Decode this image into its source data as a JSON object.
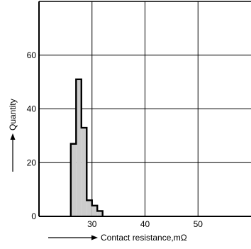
{
  "chart_data": {
    "type": "bar",
    "subtype": "histogram",
    "title": "",
    "xlabel": "Contact resistance,mΩ",
    "ylabel": "Quantity",
    "xlim": [
      20,
      60
    ],
    "ylim": [
      0,
      80
    ],
    "x_ticks": [
      {
        "value": 30,
        "label": "30"
      },
      {
        "value": 40,
        "label": "40"
      },
      {
        "value": 50,
        "label": "50"
      }
    ],
    "y_ticks": [
      {
        "value": 0,
        "label": "0"
      },
      {
        "value": 20,
        "label": "20"
      },
      {
        "value": 40,
        "label": "40"
      },
      {
        "value": 60,
        "label": "60"
      }
    ],
    "grid": true,
    "bin_width": 1,
    "bins": [
      {
        "start": 26,
        "count": 27
      },
      {
        "start": 27,
        "count": 51
      },
      {
        "start": 28,
        "count": 33
      },
      {
        "start": 29,
        "count": 6
      },
      {
        "start": 30,
        "count": 4
      },
      {
        "start": 31,
        "count": 2
      }
    ],
    "colors": {
      "bar_fill": "#cccccc",
      "bar_stroke": "#000000",
      "grid": "#000000"
    }
  }
}
